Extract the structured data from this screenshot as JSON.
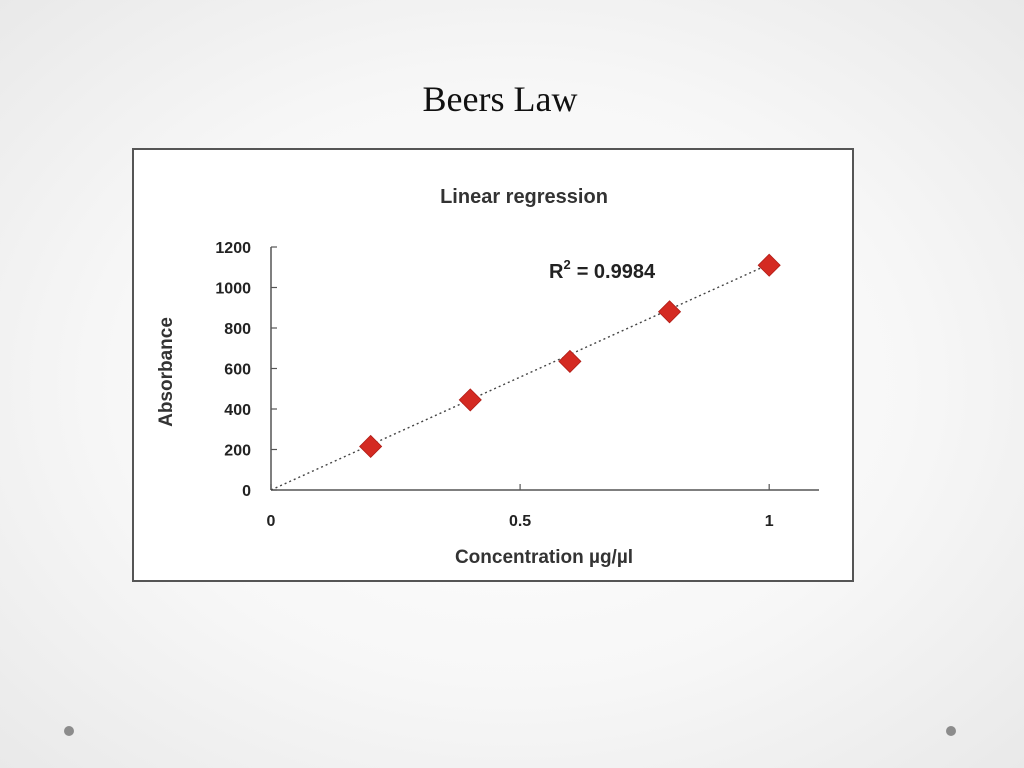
{
  "slide": {
    "title": "Beers Law"
  },
  "chart_data": {
    "type": "scatter",
    "title": "Linear regression",
    "xlabel": "Concentration µg/µl",
    "ylabel": "Absorbance",
    "xlim": [
      0,
      1.1
    ],
    "ylim": [
      0,
      1200
    ],
    "xticks": [
      0,
      0.5,
      1
    ],
    "xtick_labels": [
      "0",
      "0.5",
      "1"
    ],
    "yticks": [
      0,
      200,
      400,
      600,
      800,
      1000,
      1200
    ],
    "ytick_labels": [
      "0",
      "200",
      "400",
      "600",
      "800",
      "1000",
      "1200"
    ],
    "grid": false,
    "series": [
      {
        "x": [
          0.2,
          0.4,
          0.6,
          0.8,
          1.0
        ],
        "y": [
          215,
          445,
          635,
          880,
          1110
        ],
        "marker": "diamond",
        "color": "#d42a22"
      }
    ],
    "trendline": {
      "type": "linear",
      "style": "dotted",
      "x": [
        0,
        1.0
      ],
      "y": [
        0,
        1115
      ],
      "color": "#444444"
    },
    "annotation": {
      "r_label": "R",
      "r_superscript": "2",
      "r_value": "= 0.9984"
    }
  }
}
